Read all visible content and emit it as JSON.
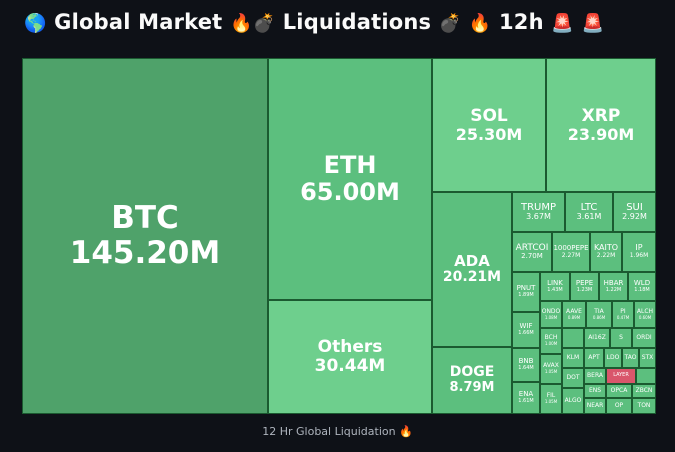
{
  "title": {
    "globe": "🌎",
    "text1": "Global Market",
    "fire": "🔥",
    "bomb": "💣",
    "text2": "Liquidations",
    "text3": "12h",
    "siren": "🚨"
  },
  "caption": {
    "text": "12 Hr Global Liquidation",
    "icon": "🔥"
  },
  "colors": {
    "background": "#0e1117",
    "tile_border": "#1b5a30",
    "tile_green_dark": "#4fa26a",
    "tile_green_mid": "#5cbf7e",
    "tile_green_light": "#6ecf8d",
    "tile_red": "#d9566b"
  },
  "chart_data": {
    "type": "treemap",
    "title": "Global Market Liquidations 12h",
    "caption": "12 Hr Global Liquidation",
    "unit": "M",
    "items": [
      {
        "name": "BTC",
        "label": "145.20M",
        "value": 145.2
      },
      {
        "name": "ETH",
        "label": "65.00M",
        "value": 65.0
      },
      {
        "name": "Others",
        "label": "30.44M",
        "value": 30.44
      },
      {
        "name": "SOL",
        "label": "25.30M",
        "value": 25.3
      },
      {
        "name": "XRP",
        "label": "23.90M",
        "value": 23.9
      },
      {
        "name": "ADA",
        "label": "20.21M",
        "value": 20.21
      },
      {
        "name": "DOGE",
        "label": "8.79M",
        "value": 8.79
      },
      {
        "name": "TRUMP",
        "label": "3.67M",
        "value": 3.67
      },
      {
        "name": "LTC",
        "label": "3.61M",
        "value": 3.61
      },
      {
        "name": "SUI",
        "label": "2.92M",
        "value": 2.92
      },
      {
        "name": "ARTCOI",
        "label": "2.70M",
        "value": 2.7
      },
      {
        "name": "1000PEPE",
        "label": "2.27M",
        "value": 2.27
      },
      {
        "name": "KAITO",
        "label": "2.22M",
        "value": 2.22
      },
      {
        "name": "IP",
        "label": "1.96M",
        "value": 1.96
      },
      {
        "name": "PNUT",
        "label": "1.89M",
        "value": 1.89
      },
      {
        "name": "LINK",
        "label": "1.43M",
        "value": 1.43
      },
      {
        "name": "PEPE",
        "label": "1.23M",
        "value": 1.23
      },
      {
        "name": "HBAR",
        "label": "1.22M",
        "value": 1.22
      },
      {
        "name": "WLD",
        "label": "1.18M",
        "value": 1.18
      },
      {
        "name": "WIF",
        "label": "1.66M",
        "value": 1.66
      },
      {
        "name": "ONDO",
        "label": "1.08M",
        "value": 1.08
      },
      {
        "name": "AAVE",
        "label": "0.89M",
        "value": 0.89
      },
      {
        "name": "TIA",
        "label": "0.86M",
        "value": 0.86
      },
      {
        "name": "PI",
        "label": "0.47M",
        "value": 0.47
      },
      {
        "name": "ALCH",
        "label": "0.60M",
        "value": 0.6
      },
      {
        "name": "BCH",
        "label": "1.00M",
        "value": 1.0
      },
      {
        "name": "AI16Z",
        "label": "",
        "value": 0.6
      },
      {
        "name": "S",
        "label": "",
        "value": 0.45
      },
      {
        "name": "ORDI",
        "label": "",
        "value": 0.4
      },
      {
        "name": "BNB",
        "label": "1.64M",
        "value": 1.64
      },
      {
        "name": "KLM",
        "label": "",
        "value": 0.5
      },
      {
        "name": "APT",
        "label": "",
        "value": 0.42
      },
      {
        "name": "LDO",
        "label": "",
        "value": 0.4
      },
      {
        "name": "TAO",
        "label": "",
        "value": 0.38
      },
      {
        "name": "STX",
        "label": "",
        "value": 0.35
      },
      {
        "name": "AVAX",
        "label": "1.05M",
        "value": 1.05
      },
      {
        "name": "BERA",
        "label": "",
        "value": 0.4
      },
      {
        "name": "LAYER",
        "label": "",
        "value": 0.35,
        "highlight": true
      },
      {
        "name": "DOT",
        "label": "",
        "value": 0.6
      },
      {
        "name": "ENS",
        "label": "",
        "value": 0.4
      },
      {
        "name": "OPCA",
        "label": "",
        "value": 0.35
      },
      {
        "name": "ENA",
        "label": "1.61M",
        "value": 1.61
      },
      {
        "name": "FIL",
        "label": "1.05M",
        "value": 1.05
      },
      {
        "name": "ALGO",
        "label": "",
        "value": 0.45
      },
      {
        "name": "NEAR",
        "label": "",
        "value": 0.4
      },
      {
        "name": "OP",
        "label": "",
        "value": 0.35
      },
      {
        "name": "TON",
        "label": "",
        "value": 0.35
      },
      {
        "name": "ZBCN",
        "label": "",
        "value": 0.3
      }
    ]
  }
}
